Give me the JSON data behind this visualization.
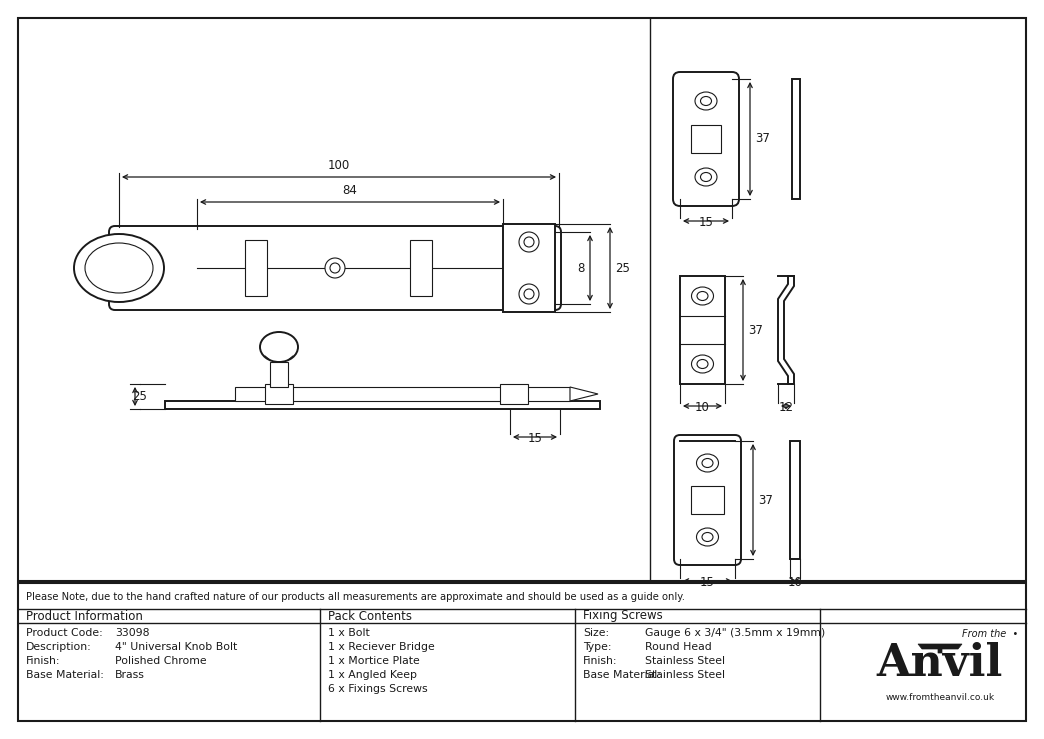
{
  "bg_color": "#ffffff",
  "drawing_bg": "#ffffff",
  "line_color": "#1a1a1a",
  "note_text": "Please Note, due to the hand crafted nature of our products all measurements are approximate and should be used as a guide only.",
  "product_info": {
    "header": "Product Information",
    "rows": [
      [
        "Product Code:",
        "33098"
      ],
      [
        "Description:",
        "4\" Universal Knob Bolt"
      ],
      [
        "Finish:",
        "Polished Chrome"
      ],
      [
        "Base Material:",
        "Brass"
      ]
    ]
  },
  "pack_contents": {
    "header": "Pack Contents",
    "items": [
      "1 x Bolt",
      "1 x Reciever Bridge",
      "1 x Mortice Plate",
      "1 x Angled Keep",
      "6 x Fixings Screws"
    ]
  },
  "fixing_screws": {
    "header": "Fixing Screws",
    "rows": [
      [
        "Size:",
        "Gauge 6 x 3/4\" (3.5mm x 19mm)"
      ],
      [
        "Type:",
        "Round Head"
      ],
      [
        "Finish:",
        "Stainless Steel"
      ],
      [
        "Base Material:",
        "Stainless Steel"
      ]
    ]
  },
  "dim_100": "100",
  "dim_84": "84",
  "dim_8": "8",
  "dim_25_right": "25",
  "dim_25_left": "25",
  "dim_15_bolt": "15",
  "dim_37_top": "37",
  "dim_15_top": "15",
  "dim_37_mid": "37",
  "dim_10_mid": "10",
  "dim_12_mid": "12",
  "dim_37_bot": "37",
  "dim_15_bot": "15",
  "dim_10_bot": "10"
}
